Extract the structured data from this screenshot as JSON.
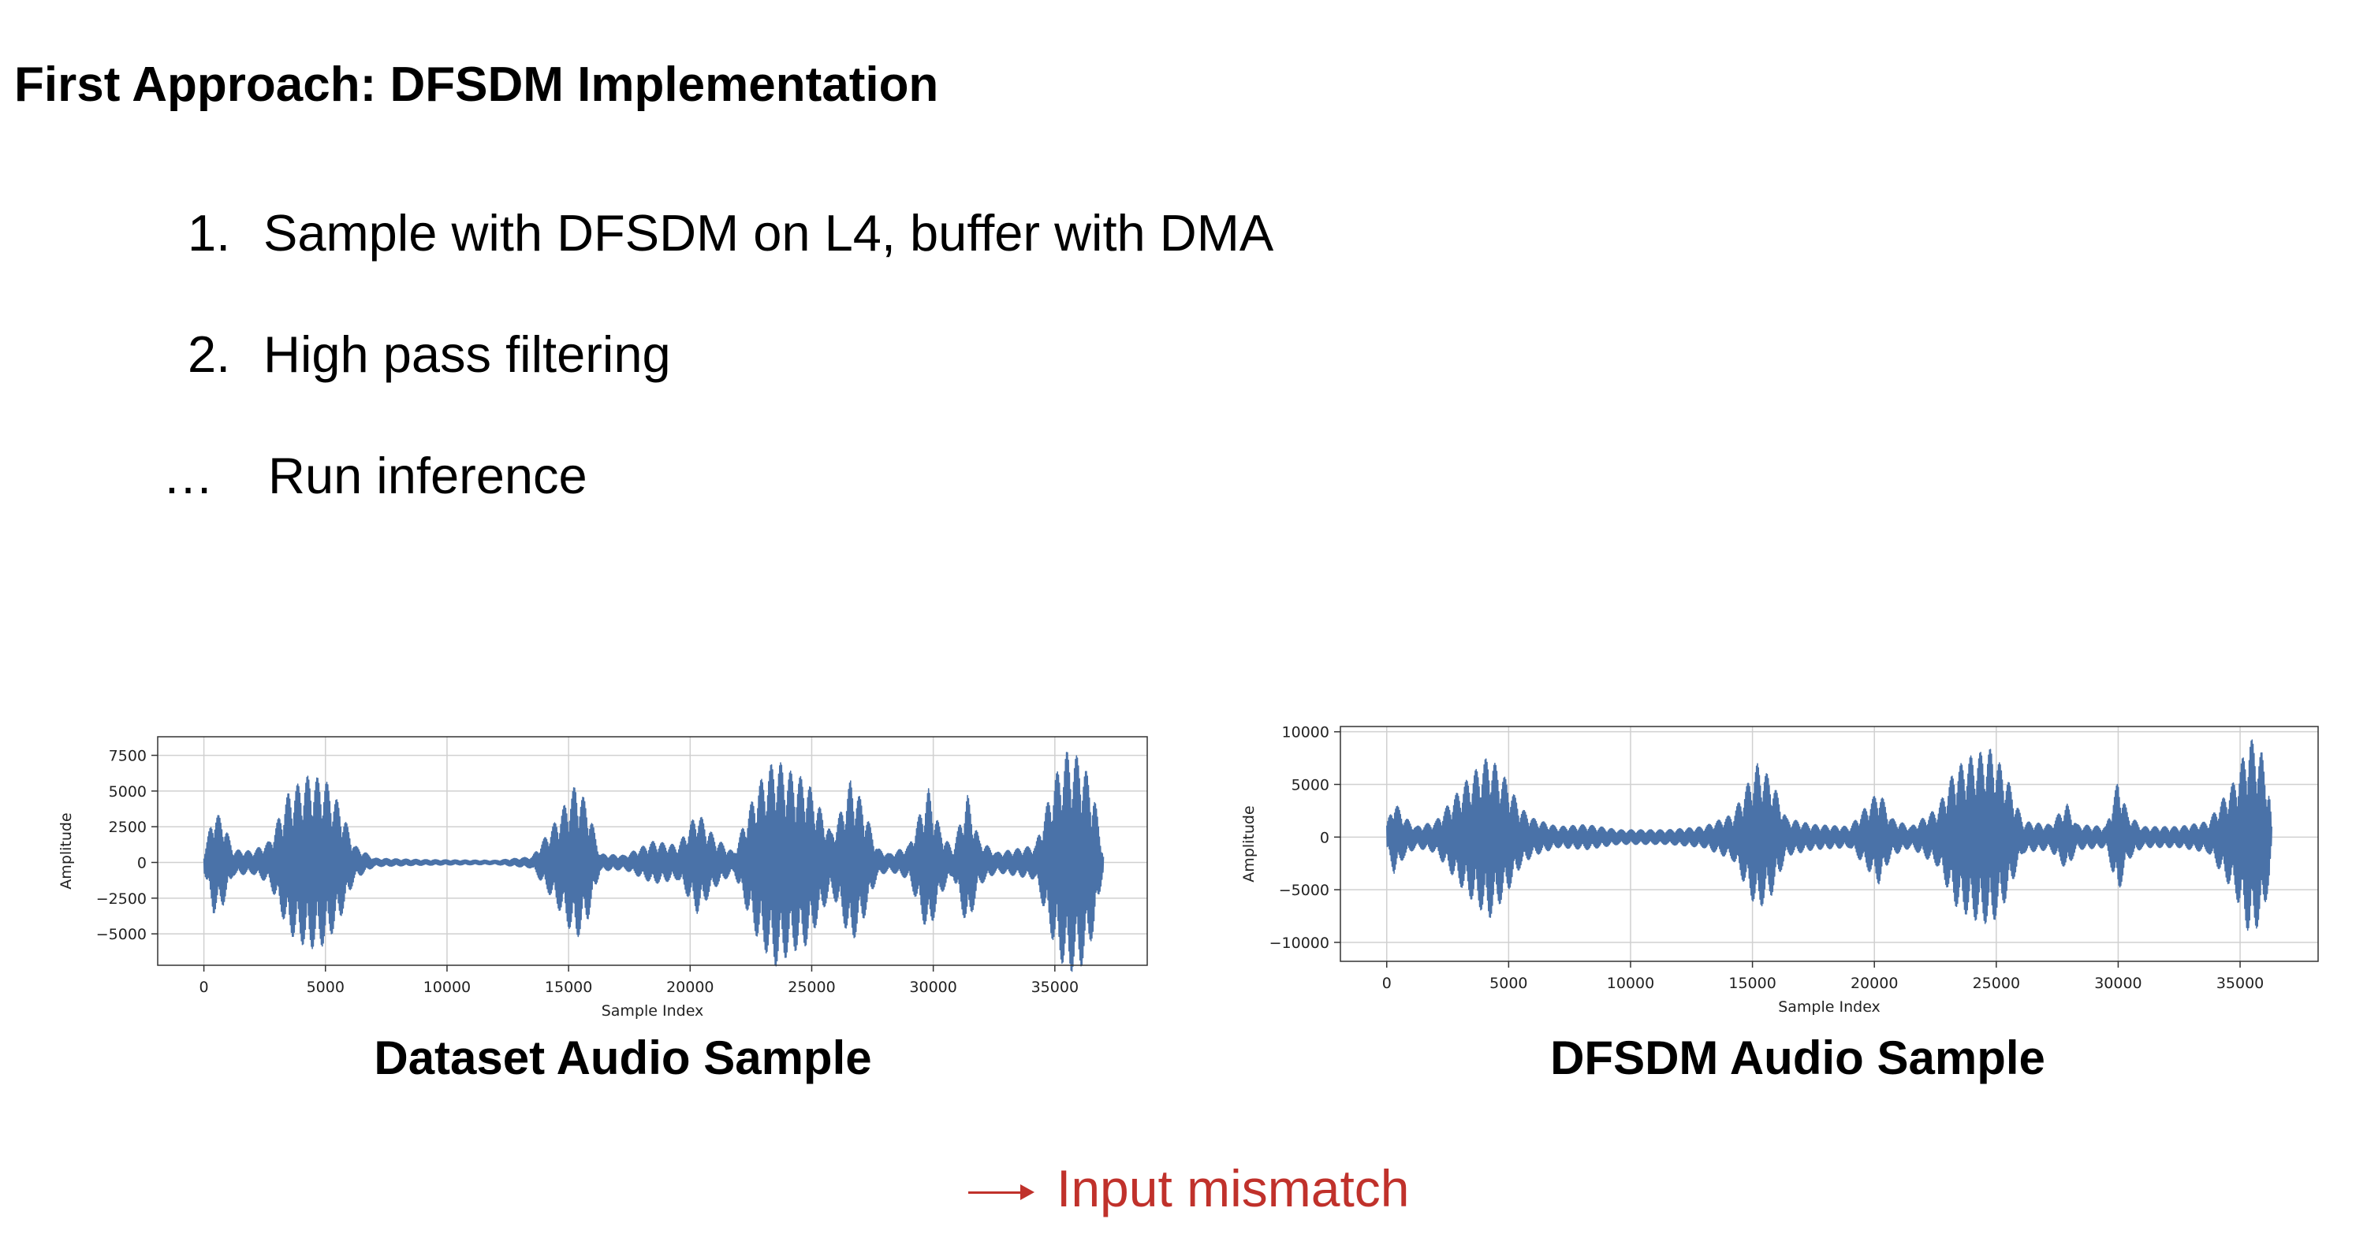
{
  "slide": {
    "title": "First Approach: DFSDM Implementation",
    "steps": [
      {
        "marker": "1.",
        "text": "Sample with DFSDM on L4, buffer with DMA"
      },
      {
        "marker": "2.",
        "text": "High pass filtering"
      },
      {
        "marker": "…",
        "text": "Run inference"
      }
    ],
    "note": "Input mismatch",
    "note_color": "#c0312b"
  },
  "chart_data": [
    {
      "type": "line",
      "caption": "Dataset Audio Sample",
      "xlabel": "Sample Index",
      "ylabel": "Amplitude",
      "xlim": [
        -1900,
        38800
      ],
      "ylim": [
        -7200,
        8800
      ],
      "xticks": [
        0,
        5000,
        10000,
        15000,
        20000,
        25000,
        30000,
        35000
      ],
      "yticks": [
        7500,
        5000,
        2500,
        0,
        -2500,
        -5000
      ],
      "ytick_labels": [
        "7500",
        "5000",
        "2500",
        "0",
        "−2500",
        "−5000"
      ],
      "grid": true,
      "line_color": "#4a72a8",
      "n_samples": 37000,
      "envelope": [
        [
          0,
          600
        ],
        [
          400,
          3600
        ],
        [
          800,
          3000
        ],
        [
          1200,
          900
        ],
        [
          2000,
          800
        ],
        [
          2700,
          1500
        ],
        [
          3500,
          5000
        ],
        [
          4300,
          6100
        ],
        [
          5000,
          5800
        ],
        [
          5600,
          4000
        ],
        [
          6200,
          1200
        ],
        [
          7000,
          300
        ],
        [
          9000,
          200
        ],
        [
          12000,
          150
        ],
        [
          13500,
          400
        ],
        [
          14500,
          3000
        ],
        [
          15300,
          5500
        ],
        [
          15800,
          4000
        ],
        [
          16300,
          600
        ],
        [
          17300,
          500
        ],
        [
          18500,
          1500
        ],
        [
          19500,
          1200
        ],
        [
          20300,
          3600
        ],
        [
          21000,
          1800
        ],
        [
          21800,
          700
        ],
        [
          22300,
          3200
        ],
        [
          22800,
          5500
        ],
        [
          23500,
          7300
        ],
        [
          24200,
          6300
        ],
        [
          24800,
          5800
        ],
        [
          25300,
          4000
        ],
        [
          25800,
          2100
        ],
        [
          26200,
          3600
        ],
        [
          26600,
          5800
        ],
        [
          27100,
          4200
        ],
        [
          27700,
          1000
        ],
        [
          28200,
          600
        ],
        [
          29000,
          1200
        ],
        [
          29800,
          5200
        ],
        [
          30300,
          2300
        ],
        [
          30800,
          900
        ],
        [
          31400,
          4800
        ],
        [
          31900,
          1600
        ],
        [
          32600,
          700
        ],
        [
          34200,
          1200
        ],
        [
          35000,
          6000
        ],
        [
          35500,
          7800
        ],
        [
          36100,
          7300
        ],
        [
          36600,
          5000
        ],
        [
          37000,
          500
        ]
      ]
    },
    {
      "type": "line",
      "caption": "DFSDM Audio Sample",
      "xlabel": "Sample Index",
      "ylabel": "Amplitude",
      "xlim": [
        -1900,
        38200
      ],
      "ylim": [
        -11800,
        10500
      ],
      "xticks": [
        0,
        5000,
        10000,
        15000,
        20000,
        25000,
        30000,
        35000
      ],
      "yticks": [
        10000,
        5000,
        0,
        -5000,
        -10000
      ],
      "ytick_labels": [
        "10000",
        "5000",
        "0",
        "−5000",
        "−10000"
      ],
      "grid": true,
      "line_color": "#4a72a8",
      "n_samples": 36300,
      "envelope": [
        [
          0,
          1200
        ],
        [
          300,
          3500
        ],
        [
          700,
          2000
        ],
        [
          1200,
          1000
        ],
        [
          2000,
          1500
        ],
        [
          3300,
          5500
        ],
        [
          4200,
          7800
        ],
        [
          4900,
          5500
        ],
        [
          5500,
          2800
        ],
        [
          6000,
          1800
        ],
        [
          7000,
          1000
        ],
        [
          8200,
          1200
        ],
        [
          9500,
          700
        ],
        [
          11500,
          700
        ],
        [
          13000,
          1000
        ],
        [
          14200,
          2200
        ],
        [
          15200,
          7000
        ],
        [
          15800,
          5500
        ],
        [
          16400,
          1800
        ],
        [
          17500,
          1200
        ],
        [
          19000,
          1000
        ],
        [
          20200,
          4500
        ],
        [
          20700,
          1800
        ],
        [
          21500,
          1000
        ],
        [
          22600,
          2800
        ],
        [
          23300,
          6500
        ],
        [
          24000,
          7800
        ],
        [
          24800,
          8400
        ],
        [
          25400,
          6000
        ],
        [
          26100,
          1500
        ],
        [
          27200,
          1200
        ],
        [
          27900,
          3200
        ],
        [
          28300,
          1200
        ],
        [
          29500,
          1000
        ],
        [
          30000,
          5500
        ],
        [
          30400,
          2200
        ],
        [
          31000,
          1000
        ],
        [
          32500,
          1000
        ],
        [
          33700,
          1500
        ],
        [
          34800,
          5500
        ],
        [
          35400,
          9500
        ],
        [
          35900,
          8000
        ],
        [
          36200,
          4500
        ],
        [
          36300,
          1000
        ]
      ]
    }
  ]
}
